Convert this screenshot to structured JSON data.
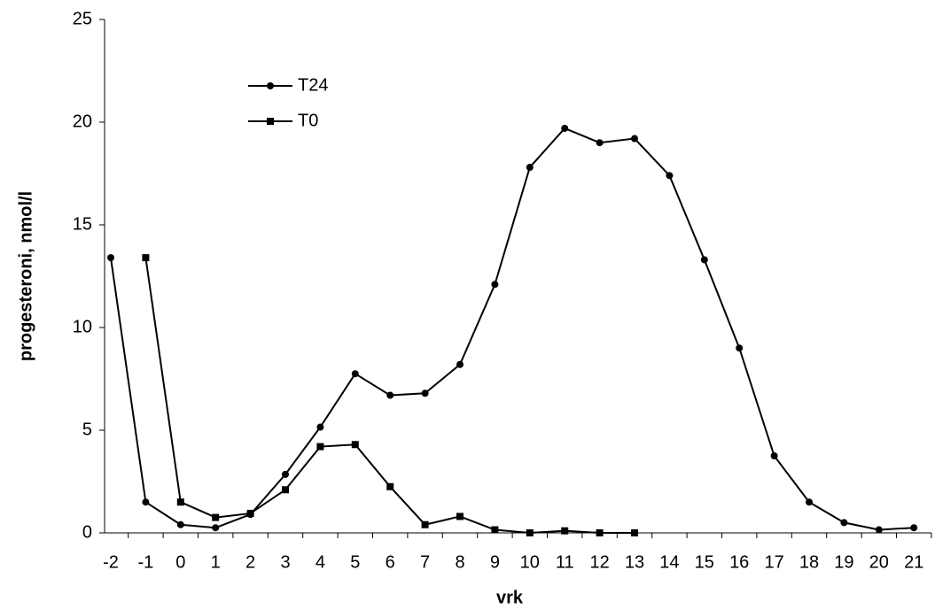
{
  "chart_data": {
    "type": "line",
    "x_label": "vrk",
    "y_label": "progesteroni, nmol/l",
    "categories": [
      "-2",
      "-1",
      "0",
      "1",
      "2",
      "3",
      "4",
      "5",
      "6",
      "7",
      "8",
      "9",
      "10",
      "11",
      "12",
      "13",
      "14",
      "15",
      "16",
      "17",
      "18",
      "19",
      "20",
      "21"
    ],
    "series": [
      {
        "name": "T24",
        "color": "#000000",
        "marker": "circle",
        "values": [
          13.4,
          1.5,
          0.4,
          0.25,
          0.9,
          2.85,
          5.15,
          7.75,
          6.7,
          6.8,
          8.2,
          12.1,
          17.8,
          19.7,
          19.0,
          19.2,
          17.4,
          13.3,
          9.0,
          3.75,
          1.5,
          0.5,
          0.15,
          0.25
        ]
      },
      {
        "name": "T0",
        "color": "#000000",
        "marker": "square",
        "values": [
          null,
          13.4,
          1.5,
          0.75,
          0.95,
          2.1,
          4.2,
          4.3,
          2.25,
          0.4,
          0.8,
          0.15,
          0.0,
          0.1,
          0.0,
          0.0,
          null,
          null,
          null,
          null,
          null,
          null,
          null,
          null
        ]
      }
    ],
    "ylim": [
      0,
      25
    ],
    "yticks": [
      0,
      5,
      10,
      15,
      20,
      25
    ],
    "grid": false
  }
}
